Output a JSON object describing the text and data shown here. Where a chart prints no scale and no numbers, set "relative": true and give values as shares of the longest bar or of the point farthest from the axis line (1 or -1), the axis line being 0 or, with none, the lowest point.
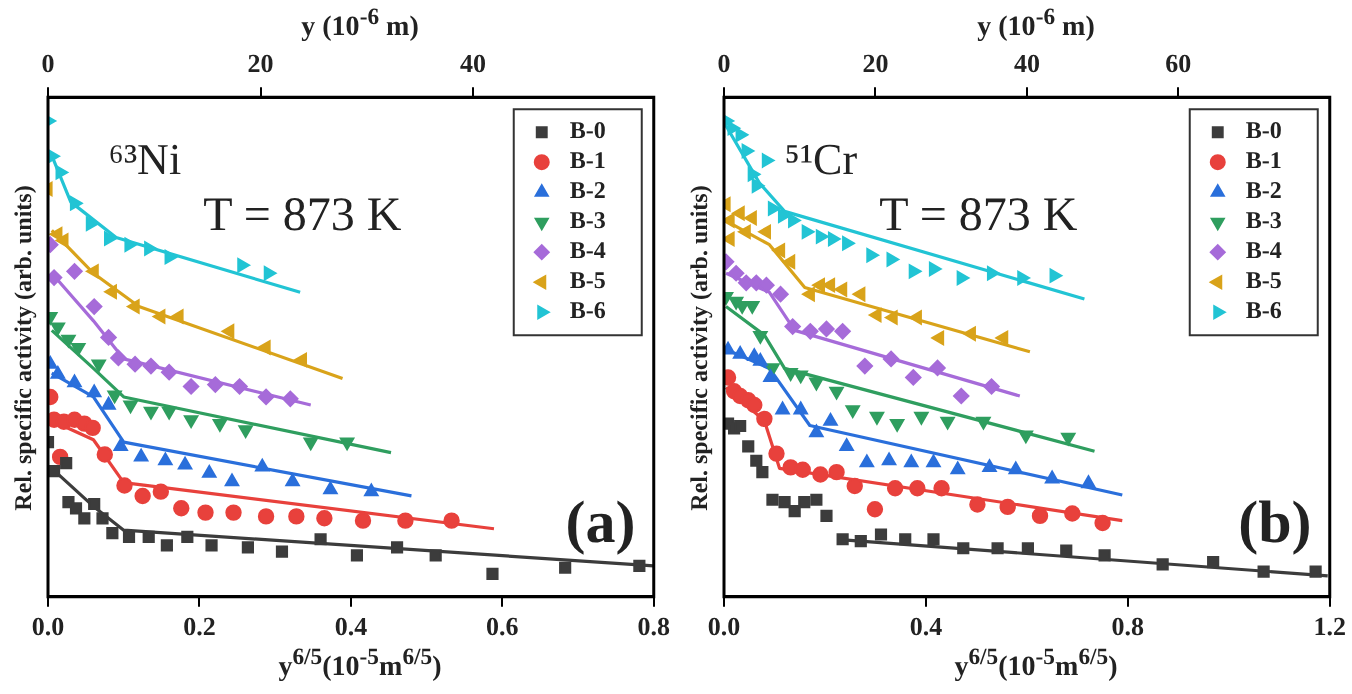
{
  "chart_data": [
    {
      "type": "scatter",
      "xlabel": "y$^{6/5}$(10$^{-5}$m$^{6/5}$)",
      "x2label": "y (10$^{-6}$ m)",
      "ylabel": "Rel. specific activity (arb. units)",
      "relative": true,
      "legend": "top right",
      "xlim": [
        0,
        0.8
      ],
      "xticks": [
        {
          "value": 0,
          "label": "0.0"
        },
        0.2,
        0.4,
        0.6,
        0.8
      ],
      "x2lim": [
        0,
        57
      ],
      "x2ticks": [
        0,
        20,
        40
      ],
      "annotations": [
        "⁶³Ni",
        "T = 873 K",
        "(a)"
      ],
      "series": [
        {
          "name": "B-0",
          "color": "#3c3c3c",
          "marker": "square",
          "x": [
            0.0,
            0.008,
            0.024,
            0.027,
            0.037,
            0.048,
            0.061,
            0.072,
            0.085,
            0.107,
            0.133,
            0.157,
            0.184,
            0.216,
            0.264,
            0.309,
            0.36,
            0.408,
            0.461,
            0.512,
            0.587,
            0.683,
            0.781
          ],
          "values": [
            0.325,
            0.264,
            0.281,
            0.199,
            0.186,
            0.165,
            0.195,
            0.165,
            0.134,
            0.126,
            0.126,
            0.108,
            0.126,
            0.108,
            0.104,
            0.095,
            0.121,
            0.087,
            0.104,
            0.087,
            0.048,
            0.061,
            0.065
          ]
        },
        {
          "name": "B-1",
          "color": "#e8413c",
          "marker": "circle",
          "x": [
            0.003,
            0.008,
            0.021,
            0.035,
            0.048,
            0.059,
            0.016,
            0.075,
            0.101,
            0.125,
            0.149,
            0.176,
            0.208,
            0.245,
            0.288,
            0.328,
            0.365,
            0.416,
            0.472,
            0.533
          ],
          "values": [
            0.42,
            0.372,
            0.368,
            0.372,
            0.364,
            0.355,
            0.294,
            0.299,
            0.234,
            0.212,
            0.221,
            0.186,
            0.177,
            0.177,
            0.169,
            0.169,
            0.165,
            0.16,
            0.16,
            0.16
          ]
        },
        {
          "name": "B-2",
          "color": "#2a6fdb",
          "marker": "triangle",
          "x": [
            0.003,
            0.013,
            0.035,
            0.061,
            0.08,
            0.096,
            0.123,
            0.155,
            0.181,
            0.213,
            0.243,
            0.283,
            0.323,
            0.373,
            0.427
          ],
          "values": [
            0.489,
            0.468,
            0.45,
            0.429,
            0.403,
            0.316,
            0.294,
            0.286,
            0.277,
            0.26,
            0.242,
            0.273,
            0.242,
            0.225,
            0.221
          ]
        },
        {
          "name": "B-3",
          "color": "#2f9e5f",
          "marker": "triangle-down",
          "x": [
            0.003,
            0.013,
            0.027,
            0.04,
            0.067,
            0.088,
            0.109,
            0.136,
            0.16,
            0.189,
            0.227,
            0.261,
            0.347,
            0.395
          ],
          "values": [
            0.589,
            0.567,
            0.541,
            0.524,
            0.489,
            0.424,
            0.403,
            0.39,
            0.39,
            0.372,
            0.364,
            0.351,
            0.325,
            0.325
          ]
        },
        {
          "name": "B-4",
          "color": "#a66bd9",
          "marker": "diamond",
          "x": [
            0.003,
            0.008,
            0.035,
            0.061,
            0.08,
            0.093,
            0.115,
            0.136,
            0.16,
            0.189,
            0.221,
            0.253,
            0.288,
            0.32
          ],
          "values": [
            0.74,
            0.671,
            0.684,
            0.61,
            0.545,
            0.502,
            0.489,
            0.485,
            0.472,
            0.442,
            0.446,
            0.442,
            0.42,
            0.416
          ]
        },
        {
          "name": "B-5",
          "color": "#d9a31a",
          "marker": "triangle-left",
          "x": [
            0.0,
            0.013,
            0.021,
            0.061,
            0.085,
            0.115,
            0.149,
            0.173,
            0.24,
            0.288,
            0.336
          ],
          "values": [
            0.857,
            0.762,
            0.749,
            0.684,
            0.641,
            0.61,
            0.589,
            0.589,
            0.558,
            0.524,
            0.498
          ]
        },
        {
          "name": "B-6",
          "color": "#22c4d4",
          "marker": "triangle-right",
          "x": [
            0.0,
            0.005,
            0.016,
            0.035,
            0.056,
            0.08,
            0.107,
            0.133,
            0.16,
            0.256,
            0.291
          ],
          "values": [
            1.0,
            0.926,
            0.892,
            0.827,
            0.784,
            0.753,
            0.74,
            0.732,
            0.714,
            0.697,
            0.68
          ]
        },
        {
          "type": "line",
          "color": "#3c3c3c",
          "x": [
            0.005,
            0.06,
            0.1,
            0.8
          ],
          "values": [
            0.27,
            0.19,
            0.14,
            0.065
          ]
        },
        {
          "type": "line",
          "color": "#e8413c",
          "x": [
            0.005,
            0.06,
            0.1,
            0.589
          ],
          "values": [
            0.37,
            0.33,
            0.24,
            0.143
          ]
        },
        {
          "type": "line",
          "color": "#2a6fdb",
          "x": [
            0.005,
            0.06,
            0.1,
            0.48
          ],
          "values": [
            0.47,
            0.42,
            0.325,
            0.212
          ]
        },
        {
          "type": "line",
          "color": "#2f9e5f",
          "x": [
            0.005,
            0.06,
            0.1,
            0.453
          ],
          "values": [
            0.56,
            0.48,
            0.42,
            0.303
          ]
        },
        {
          "type": "line",
          "color": "#a66bd9",
          "x": [
            0.005,
            0.06,
            0.1,
            0.347
          ],
          "values": [
            0.68,
            0.58,
            0.5,
            0.403
          ]
        },
        {
          "type": "line",
          "color": "#d9a31a",
          "x": [
            0.005,
            0.06,
            0.12,
            0.389
          ],
          "values": [
            0.77,
            0.68,
            0.61,
            0.459
          ]
        },
        {
          "type": "line",
          "color": "#22c4d4",
          "x": [
            0.003,
            0.03,
            0.09,
            0.333
          ],
          "values": [
            0.935,
            0.83,
            0.755,
            0.64
          ]
        }
      ]
    },
    {
      "type": "scatter",
      "xlabel": "y$^{6/5}$(10$^{-5}$m$^{6/5}$)",
      "x2label": "y (10$^{-6}$ m)",
      "ylabel": "Rel. specific activity (arb. units)",
      "relative": true,
      "legend": "top right",
      "xlim": [
        0,
        1.2
      ],
      "xticks": [
        {
          "value": 0,
          "label": "0.0"
        },
        0.4,
        0.8,
        1.2
      ],
      "x2lim": [
        0,
        80
      ],
      "x2ticks": [
        0,
        20,
        40,
        60
      ],
      "annotations": [
        "⁵¹Cr",
        "T = 873 K",
        "(b)"
      ],
      "series": [
        {
          "name": "B-0",
          "color": "#3c3c3c",
          "marker": "square",
          "x": [
            0.008,
            0.02,
            0.032,
            0.048,
            0.064,
            0.076,
            0.096,
            0.12,
            0.14,
            0.159,
            0.183,
            0.203,
            0.235,
            0.271,
            0.311,
            0.359,
            0.415,
            0.474,
            0.542,
            0.602,
            0.678,
            0.754,
            0.869,
            0.969,
            1.069,
            1.172
          ],
          "values": [
            0.364,
            0.354,
            0.359,
            0.316,
            0.286,
            0.262,
            0.204,
            0.199,
            0.18,
            0.199,
            0.204,
            0.17,
            0.121,
            0.117,
            0.131,
            0.121,
            0.121,
            0.102,
            0.102,
            0.102,
            0.097,
            0.087,
            0.068,
            0.073,
            0.053,
            0.053
          ]
        },
        {
          "name": "B-1",
          "color": "#e8413c",
          "marker": "circle",
          "x": [
            0.008,
            0.02,
            0.032,
            0.048,
            0.06,
            0.08,
            0.104,
            0.132,
            0.156,
            0.191,
            0.223,
            0.259,
            0.299,
            0.339,
            0.383,
            0.431,
            0.502,
            0.562,
            0.626,
            0.69,
            0.75
          ],
          "values": [
            0.461,
            0.432,
            0.422,
            0.413,
            0.403,
            0.374,
            0.301,
            0.272,
            0.267,
            0.257,
            0.262,
            0.233,
            0.184,
            0.228,
            0.228,
            0.228,
            0.194,
            0.189,
            0.17,
            0.175,
            0.155
          ]
        },
        {
          "name": "B-2",
          "color": "#2a6fdb",
          "marker": "triangle",
          "x": [
            0.008,
            0.032,
            0.06,
            0.072,
            0.092,
            0.116,
            0.152,
            0.183,
            0.211,
            0.243,
            0.283,
            0.327,
            0.371,
            0.415,
            0.463,
            0.526,
            0.578,
            0.65,
            0.722
          ],
          "values": [
            0.519,
            0.51,
            0.505,
            0.495,
            0.461,
            0.393,
            0.393,
            0.345,
            0.369,
            0.316,
            0.282,
            0.286,
            0.282,
            0.282,
            0.267,
            0.272,
            0.267,
            0.248,
            0.238
          ]
        },
        {
          "name": "B-3",
          "color": "#2f9e5f",
          "marker": "triangle-down",
          "x": [
            0.004,
            0.024,
            0.036,
            0.056,
            0.072,
            0.096,
            0.132,
            0.152,
            0.183,
            0.223,
            0.255,
            0.303,
            0.343,
            0.391,
            0.443,
            0.514,
            0.598,
            0.682
          ],
          "values": [
            0.631,
            0.621,
            0.612,
            0.612,
            0.549,
            0.481,
            0.471,
            0.466,
            0.451,
            0.432,
            0.393,
            0.379,
            0.364,
            0.379,
            0.369,
            0.369,
            0.34,
            0.335
          ]
        },
        {
          "name": "B-4",
          "color": "#a66bd9",
          "marker": "diamond",
          "x": [
            0.004,
            0.024,
            0.044,
            0.064,
            0.084,
            0.112,
            0.136,
            0.171,
            0.203,
            0.235,
            0.279,
            0.331,
            0.375,
            0.423,
            0.47,
            0.53
          ],
          "values": [
            0.704,
            0.68,
            0.66,
            0.66,
            0.655,
            0.636,
            0.568,
            0.558,
            0.563,
            0.558,
            0.485,
            0.5,
            0.461,
            0.481,
            0.422,
            0.442
          ]
        },
        {
          "name": "B-5",
          "color": "#d9a31a",
          "marker": "triangle-left",
          "x": [
            0.004,
            0.012,
            0.012,
            0.032,
            0.056,
            0.044,
            0.084,
            0.112,
            0.132,
            0.171,
            0.191,
            0.211,
            0.235,
            0.271,
            0.303,
            0.335,
            0.383,
            0.427,
            0.49,
            0.554
          ],
          "values": [
            0.825,
            0.791,
            0.752,
            0.806,
            0.796,
            0.767,
            0.767,
            0.728,
            0.704,
            0.636,
            0.655,
            0.655,
            0.646,
            0.636,
            0.592,
            0.587,
            0.587,
            0.544,
            0.553,
            0.544
          ]
        },
        {
          "name": "B-6",
          "color": "#22c4d4",
          "marker": "triangle-right",
          "x": [
            0.004,
            0.016,
            0.032,
            0.044,
            0.084,
            0.056,
            0.064,
            0.096,
            0.116,
            0.136,
            0.163,
            0.191,
            0.215,
            0.243,
            0.291,
            0.331,
            0.375,
            0.415,
            0.47,
            0.53,
            0.59,
            0.654
          ],
          "values": [
            1.0,
            0.985,
            0.971,
            0.937,
            0.917,
            0.888,
            0.864,
            0.816,
            0.801,
            0.791,
            0.767,
            0.757,
            0.752,
            0.743,
            0.718,
            0.709,
            0.684,
            0.689,
            0.67,
            0.68,
            0.67,
            0.675
          ]
        },
        {
          "type": "line",
          "color": "#3c3c3c",
          "x": [
            0.23,
            1.196
          ],
          "values": [
            0.12,
            0.044
          ]
        },
        {
          "type": "line",
          "color": "#e8413c",
          "x": [
            0.004,
            0.08,
            0.11,
            0.789
          ],
          "values": [
            0.44,
            0.37,
            0.27,
            0.16
          ]
        },
        {
          "type": "line",
          "color": "#2a6fdb",
          "x": [
            0.004,
            0.09,
            0.17,
            0.789
          ],
          "values": [
            0.52,
            0.48,
            0.36,
            0.214
          ]
        },
        {
          "type": "line",
          "color": "#2f9e5f",
          "x": [
            0.004,
            0.08,
            0.12,
            0.734
          ],
          "values": [
            0.61,
            0.55,
            0.48,
            0.306
          ]
        },
        {
          "type": "line",
          "color": "#a66bd9",
          "x": [
            0.004,
            0.09,
            0.14,
            0.586
          ],
          "values": [
            0.68,
            0.64,
            0.56,
            0.422
          ]
        },
        {
          "type": "line",
          "color": "#d9a31a",
          "x": [
            0.004,
            0.09,
            0.16,
            0.606
          ],
          "values": [
            0.79,
            0.74,
            0.65,
            0.515
          ]
        },
        {
          "type": "line",
          "color": "#22c4d4",
          "x": [
            0.004,
            0.07,
            0.12,
            0.714
          ],
          "values": [
            0.99,
            0.87,
            0.81,
            0.626
          ]
        }
      ]
    }
  ]
}
